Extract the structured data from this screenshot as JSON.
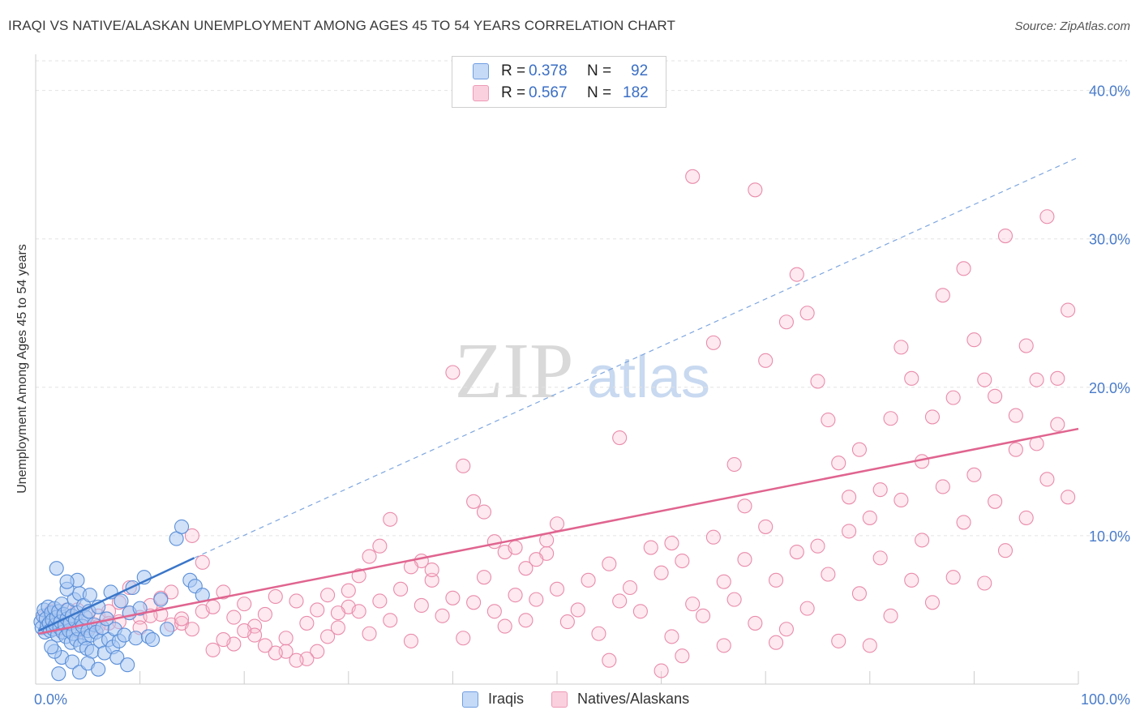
{
  "header": {
    "title": "IRAQI VS NATIVE/ALASKAN UNEMPLOYMENT AMONG AGES 45 TO 54 YEARS CORRELATION CHART",
    "source": "Source: ZipAtlas.com"
  },
  "watermark": {
    "zip": "ZIP",
    "atlas": "atlas"
  },
  "legend": {
    "iraqis": {
      "r_label": "R =",
      "r_value": "0.378",
      "n_label": "N =",
      "n_value": "92"
    },
    "natives": {
      "r_label": "R =",
      "r_value": "0.567",
      "n_label": "N =",
      "n_value": "182"
    }
  },
  "bottom_legend": {
    "iraqis": "Iraqis",
    "natives": "Natives/Alaskans"
  },
  "colors": {
    "iraqis_fill": "#a9c8f2",
    "iraqis_stroke": "#5b8fd8",
    "iraqis_line": "#3a76c9",
    "natives_fill": "#f8bfd2",
    "natives_stroke": "#e98bab",
    "natives_line": "#e0648f",
    "tick_text": "#4a7cc9",
    "grid": "#e3e3e3"
  },
  "chart_data": {
    "type": "scatter",
    "title": "IRAQI VS NATIVE/ALASKAN UNEMPLOYMENT AMONG AGES 45 TO 54 YEARS CORRELATION CHART",
    "xlabel": "",
    "ylabel": "Unemployment Among Ages 45 to 54 years",
    "xlim": [
      0,
      100
    ],
    "ylim": [
      0,
      42
    ],
    "x_tick_labels": [
      "0.0%",
      "100.0%"
    ],
    "y_ticks": [
      10,
      20,
      30,
      40
    ],
    "y_tick_labels": [
      "10.0%",
      "20.0%",
      "30.0%",
      "40.0%"
    ],
    "series": [
      {
        "name": "Iraqis",
        "r": 0.378,
        "n": 92,
        "trend": {
          "x0": 0.3,
          "y0": 3.6,
          "x1": 15.2,
          "y1": 8.5,
          "dashed_to_x": 100,
          "dashed_to_y": 35.5
        },
        "points": [
          [
            0.5,
            4.2
          ],
          [
            0.6,
            3.8
          ],
          [
            0.7,
            4.6
          ],
          [
            0.8,
            5.0
          ],
          [
            0.9,
            3.5
          ],
          [
            1.0,
            4.4
          ],
          [
            1.1,
            3.9
          ],
          [
            1.2,
            5.2
          ],
          [
            1.3,
            4.1
          ],
          [
            1.4,
            3.6
          ],
          [
            1.5,
            4.8
          ],
          [
            1.6,
            4.3
          ],
          [
            1.7,
            3.7
          ],
          [
            1.8,
            5.1
          ],
          [
            1.9,
            4.0
          ],
          [
            2.0,
            4.5
          ],
          [
            2.1,
            3.3
          ],
          [
            2.2,
            4.9
          ],
          [
            2.3,
            3.8
          ],
          [
            2.4,
            4.2
          ],
          [
            2.5,
            5.4
          ],
          [
            2.6,
            3.5
          ],
          [
            2.7,
            4.7
          ],
          [
            2.8,
            4.0
          ],
          [
            2.9,
            3.2
          ],
          [
            3.0,
            4.4
          ],
          [
            3.1,
            5.0
          ],
          [
            3.2,
            3.6
          ],
          [
            3.3,
            4.1
          ],
          [
            3.4,
            2.8
          ],
          [
            3.5,
            4.6
          ],
          [
            3.6,
            3.4
          ],
          [
            3.7,
            5.7
          ],
          [
            3.8,
            4.3
          ],
          [
            3.9,
            3.0
          ],
          [
            4.0,
            4.8
          ],
          [
            4.1,
            3.7
          ],
          [
            4.2,
            6.1
          ],
          [
            4.3,
            2.6
          ],
          [
            4.4,
            4.2
          ],
          [
            4.5,
            3.9
          ],
          [
            4.6,
            5.3
          ],
          [
            4.7,
            3.1
          ],
          [
            4.8,
            4.5
          ],
          [
            4.9,
            2.4
          ],
          [
            5.0,
            3.6
          ],
          [
            5.1,
            4.9
          ],
          [
            5.2,
            6.0
          ],
          [
            5.3,
            3.3
          ],
          [
            5.4,
            2.2
          ],
          [
            5.6,
            4.0
          ],
          [
            5.8,
            3.5
          ],
          [
            6.0,
            5.2
          ],
          [
            6.2,
            2.9
          ],
          [
            6.4,
            3.8
          ],
          [
            6.6,
            2.1
          ],
          [
            6.8,
            4.4
          ],
          [
            7.0,
            3.0
          ],
          [
            7.2,
            6.2
          ],
          [
            7.4,
            2.5
          ],
          [
            7.6,
            3.7
          ],
          [
            7.8,
            1.8
          ],
          [
            8.0,
            2.9
          ],
          [
            8.2,
            5.6
          ],
          [
            8.5,
            3.3
          ],
          [
            8.8,
            1.3
          ],
          [
            9.0,
            4.8
          ],
          [
            9.3,
            6.5
          ],
          [
            9.6,
            3.1
          ],
          [
            10.0,
            5.1
          ],
          [
            10.4,
            7.2
          ],
          [
            10.8,
            3.2
          ],
          [
            11.2,
            3.0
          ],
          [
            12.0,
            5.7
          ],
          [
            12.6,
            3.7
          ],
          [
            13.5,
            9.8
          ],
          [
            14.0,
            10.6
          ],
          [
            14.8,
            7.0
          ],
          [
            15.3,
            6.6
          ],
          [
            16.0,
            6.0
          ],
          [
            2.0,
            7.8
          ],
          [
            3.0,
            6.4
          ],
          [
            4.0,
            7.0
          ],
          [
            2.5,
            1.8
          ],
          [
            1.8,
            2.2
          ],
          [
            3.5,
            1.5
          ],
          [
            4.2,
            0.8
          ],
          [
            5.0,
            1.4
          ],
          [
            6.0,
            1.0
          ],
          [
            1.5,
            2.5
          ],
          [
            2.2,
            0.7
          ],
          [
            3.0,
            6.9
          ]
        ]
      },
      {
        "name": "Natives/Alaskans",
        "r": 0.567,
        "n": 182,
        "trend": {
          "x0": 0.3,
          "y0": 3.4,
          "x1": 100,
          "y1": 17.2
        },
        "points": [
          [
            0.8,
            4.5
          ],
          [
            1.5,
            4.9
          ],
          [
            2.2,
            3.7
          ],
          [
            3.0,
            4.2
          ],
          [
            4.0,
            5.0
          ],
          [
            5.0,
            3.8
          ],
          [
            6.0,
            4.6
          ],
          [
            7.0,
            4.9
          ],
          [
            8.0,
            4.2
          ],
          [
            9.0,
            4.8
          ],
          [
            10.0,
            4.5
          ],
          [
            11.0,
            5.3
          ],
          [
            12.0,
            4.7
          ],
          [
            13.0,
            4.0
          ],
          [
            14.0,
            4.1
          ],
          [
            15.0,
            3.7
          ],
          [
            16.0,
            4.9
          ],
          [
            17.0,
            5.2
          ],
          [
            18.0,
            6.2
          ],
          [
            19.0,
            4.5
          ],
          [
            20.0,
            5.4
          ],
          [
            21.0,
            3.9
          ],
          [
            22.0,
            4.7
          ],
          [
            23.0,
            5.9
          ],
          [
            24.0,
            2.2
          ],
          [
            25.0,
            5.6
          ],
          [
            26.0,
            4.1
          ],
          [
            27.0,
            5.0
          ],
          [
            28.0,
            6.0
          ],
          [
            29.0,
            3.8
          ],
          [
            30.0,
            5.2
          ],
          [
            31.0,
            4.9
          ],
          [
            32.0,
            3.4
          ],
          [
            33.0,
            5.6
          ],
          [
            34.0,
            4.3
          ],
          [
            35.0,
            6.4
          ],
          [
            36.0,
            2.9
          ],
          [
            37.0,
            5.3
          ],
          [
            38.0,
            7.0
          ],
          [
            39.0,
            4.6
          ],
          [
            40.0,
            5.8
          ],
          [
            41.0,
            3.1
          ],
          [
            42.0,
            5.5
          ],
          [
            43.0,
            7.2
          ],
          [
            44.0,
            4.9
          ],
          [
            45.0,
            3.9
          ],
          [
            46.0,
            6.0
          ],
          [
            47.0,
            4.3
          ],
          [
            48.0,
            5.7
          ],
          [
            49.0,
            8.8
          ],
          [
            50.0,
            6.4
          ],
          [
            51.0,
            4.2
          ],
          [
            52.0,
            5.0
          ],
          [
            53.0,
            7.0
          ],
          [
            54.0,
            3.4
          ],
          [
            55.0,
            8.1
          ],
          [
            56.0,
            5.6
          ],
          [
            57.0,
            6.5
          ],
          [
            58.0,
            4.9
          ],
          [
            59.0,
            9.2
          ],
          [
            60.0,
            7.5
          ],
          [
            61.0,
            3.2
          ],
          [
            62.0,
            8.3
          ],
          [
            63.0,
            5.4
          ],
          [
            64.0,
            4.6
          ],
          [
            65.0,
            9.9
          ],
          [
            66.0,
            6.9
          ],
          [
            67.0,
            5.7
          ],
          [
            68.0,
            8.4
          ],
          [
            69.0,
            4.1
          ],
          [
            70.0,
            10.6
          ],
          [
            71.0,
            7.0
          ],
          [
            72.0,
            3.7
          ],
          [
            73.0,
            8.9
          ],
          [
            74.0,
            5.1
          ],
          [
            75.0,
            9.3
          ],
          [
            76.0,
            7.4
          ],
          [
            77.0,
            2.9
          ],
          [
            78.0,
            10.3
          ],
          [
            79.0,
            6.1
          ],
          [
            80.0,
            11.2
          ],
          [
            81.0,
            8.5
          ],
          [
            82.0,
            4.6
          ],
          [
            83.0,
            12.4
          ],
          [
            84.0,
            7.0
          ],
          [
            85.0,
            9.7
          ],
          [
            86.0,
            5.5
          ],
          [
            87.0,
            13.3
          ],
          [
            88.0,
            7.2
          ],
          [
            89.0,
            10.9
          ],
          [
            90.0,
            14.1
          ],
          [
            91.0,
            6.8
          ],
          [
            92.0,
            12.3
          ],
          [
            93.0,
            9.0
          ],
          [
            94.0,
            15.8
          ],
          [
            95.0,
            11.2
          ],
          [
            96.0,
            16.2
          ],
          [
            97.0,
            13.8
          ],
          [
            98.0,
            17.5
          ],
          [
            99.0,
            12.6
          ],
          [
            50.0,
            10.8
          ],
          [
            56.0,
            16.6
          ],
          [
            61.0,
            9.5
          ],
          [
            63.0,
            34.2
          ],
          [
            65.0,
            23.0
          ],
          [
            67.0,
            14.8
          ],
          [
            68.0,
            12.0
          ],
          [
            69.0,
            33.3
          ],
          [
            70.0,
            21.8
          ],
          [
            72.0,
            24.4
          ],
          [
            73.0,
            27.6
          ],
          [
            74.0,
            25.0
          ],
          [
            75.0,
            20.4
          ],
          [
            76.0,
            17.8
          ],
          [
            77.0,
            14.9
          ],
          [
            78.0,
            12.6
          ],
          [
            79.0,
            15.8
          ],
          [
            81.0,
            13.1
          ],
          [
            82.0,
            17.9
          ],
          [
            83.0,
            22.7
          ],
          [
            84.0,
            20.6
          ],
          [
            85.0,
            15.0
          ],
          [
            86.0,
            18.0
          ],
          [
            87.0,
            26.2
          ],
          [
            88.0,
            19.3
          ],
          [
            89.0,
            28.0
          ],
          [
            90.0,
            23.2
          ],
          [
            91.0,
            20.5
          ],
          [
            92.0,
            19.4
          ],
          [
            93.0,
            30.2
          ],
          [
            94.0,
            18.1
          ],
          [
            95.0,
            22.8
          ],
          [
            96.0,
            20.5
          ],
          [
            97.0,
            31.5
          ],
          [
            98.0,
            20.6
          ],
          [
            99.0,
            25.2
          ],
          [
            40.0,
            21.0
          ],
          [
            41.0,
            14.7
          ],
          [
            42.0,
            12.3
          ],
          [
            43.0,
            11.6
          ],
          [
            44.0,
            9.6
          ],
          [
            45.0,
            8.9
          ],
          [
            46.0,
            9.2
          ],
          [
            47.0,
            7.8
          ],
          [
            48.0,
            8.4
          ],
          [
            49.0,
            9.7
          ],
          [
            38.0,
            7.7
          ],
          [
            37.0,
            8.3
          ],
          [
            36.0,
            7.9
          ],
          [
            34.0,
            11.1
          ],
          [
            33.0,
            9.3
          ],
          [
            32.0,
            8.6
          ],
          [
            31.0,
            7.3
          ],
          [
            30.0,
            6.3
          ],
          [
            29.0,
            4.8
          ],
          [
            28.0,
            3.2
          ],
          [
            27.0,
            2.2
          ],
          [
            26.0,
            1.7
          ],
          [
            25.0,
            1.6
          ],
          [
            24.0,
            3.1
          ],
          [
            23.0,
            2.1
          ],
          [
            22.0,
            2.6
          ],
          [
            21.0,
            3.3
          ],
          [
            20.0,
            3.6
          ],
          [
            19.0,
            2.7
          ],
          [
            18.0,
            3.0
          ],
          [
            17.0,
            2.3
          ],
          [
            16.0,
            8.2
          ],
          [
            15.0,
            10.0
          ],
          [
            14.0,
            4.4
          ],
          [
            13.0,
            6.2
          ],
          [
            12.0,
            5.8
          ],
          [
            11.0,
            4.6
          ],
          [
            10.0,
            3.8
          ],
          [
            9.0,
            6.5
          ],
          [
            8.0,
            5.5
          ],
          [
            7.0,
            4.1
          ],
          [
            6.0,
            3.9
          ],
          [
            5.0,
            4.7
          ],
          [
            4.0,
            3.6
          ],
          [
            3.0,
            5.0
          ],
          [
            55.0,
            1.6
          ],
          [
            60.0,
            0.9
          ],
          [
            62.0,
            1.9
          ],
          [
            66.0,
            2.6
          ],
          [
            71.0,
            2.8
          ],
          [
            80.0,
            2.6
          ]
        ]
      }
    ]
  }
}
